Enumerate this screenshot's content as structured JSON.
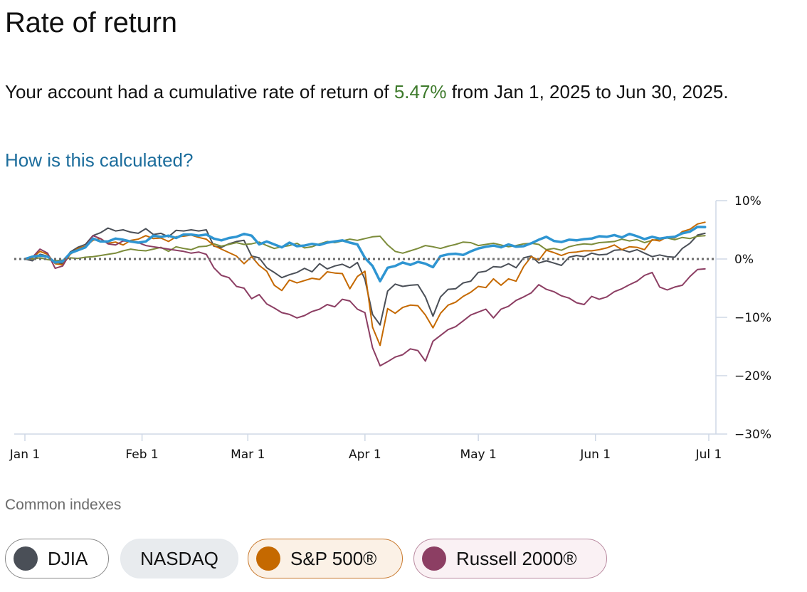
{
  "header": {
    "title": "Rate of return"
  },
  "summary": {
    "prefix": "Your account had a cumulative rate of return of ",
    "return_value": "5.47%",
    "suffix": " from Jan 1, 2025 to Jun 30, 2025.",
    "link_label": "How is this calculated?"
  },
  "colors": {
    "account": "#2e95d2",
    "djia": "#4a4f57",
    "nasdaq": "#7c8c3b",
    "sp500": "#c56900",
    "russell": "#8c3e63",
    "return_positive": "#3d7a2b",
    "link": "#1c6d9c"
  },
  "indexes": {
    "label": "Common indexes",
    "chips": [
      {
        "id": "djia",
        "label": "DJIA",
        "selected": true
      },
      {
        "id": "nasdaq",
        "label": "NASDAQ",
        "selected": false
      },
      {
        "id": "sp500",
        "label": "S&P 500®",
        "selected": true
      },
      {
        "id": "russell",
        "label": "Russell 2000®",
        "selected": true
      }
    ]
  },
  "chart_data": {
    "type": "line",
    "title": "Rate of return",
    "xlabel": "",
    "ylabel": "",
    "x_domain_days": [
      0,
      181
    ],
    "ylim": [
      -30,
      10
    ],
    "y_ticks": [
      {
        "value": 10,
        "label": "10%"
      },
      {
        "value": 0,
        "label": "0%"
      },
      {
        "value": -10,
        "label": "−10%"
      },
      {
        "value": -20,
        "label": "−20%"
      },
      {
        "value": -30,
        "label": "−30%"
      }
    ],
    "x_ticks": [
      {
        "day": 0,
        "label": "Jan 1"
      },
      {
        "day": 31,
        "label": "Feb 1"
      },
      {
        "day": 59,
        "label": "Mar 1"
      },
      {
        "day": 90,
        "label": "Apr 1"
      },
      {
        "day": 120,
        "label": "May 1"
      },
      {
        "day": 151,
        "label": "Jun 1"
      },
      {
        "day": 181,
        "label": "Jul 1"
      }
    ],
    "zero_line": "dotted",
    "x_days": [
      0,
      2,
      4,
      6,
      8,
      10,
      12,
      14,
      16,
      18,
      20,
      22,
      24,
      26,
      28,
      30,
      32,
      34,
      36,
      38,
      40,
      42,
      44,
      46,
      48,
      50,
      52,
      54,
      56,
      58,
      60,
      62,
      64,
      66,
      68,
      70,
      72,
      74,
      76,
      78,
      80,
      82,
      84,
      86,
      88,
      90,
      92,
      94,
      96,
      98,
      100,
      102,
      104,
      106,
      108,
      110,
      112,
      114,
      116,
      118,
      120,
      122,
      124,
      126,
      128,
      130,
      132,
      134,
      136,
      138,
      140,
      142,
      144,
      146,
      148,
      150,
      152,
      154,
      156,
      158,
      160,
      162,
      164,
      166,
      168,
      170,
      172,
      174,
      176,
      178,
      180
    ],
    "series": [
      {
        "name": "Account",
        "color_key": "account",
        "width": 3.5,
        "values": [
          0,
          0.4,
          0.6,
          0.4,
          -0.6,
          -0.4,
          1,
          1.5,
          2,
          3.5,
          3,
          3,
          3.5,
          3.3,
          3,
          2.8,
          3,
          4,
          3.8,
          4,
          3.6,
          4.2,
          4.2,
          4,
          4.2,
          3.5,
          3.2,
          3.6,
          3.8,
          4.3,
          4,
          2.5,
          3,
          2.5,
          2,
          2.8,
          2.2,
          2.3,
          2.6,
          2.4,
          2.8,
          3,
          3.2,
          2.8,
          2.5,
          0.2,
          -1.2,
          -3.8,
          -1.5,
          -1.2,
          -0.6,
          -1,
          -0.5,
          -0.8,
          -1.4,
          0.5,
          0.8,
          0.9,
          0.7,
          1.3,
          1.8,
          2.1,
          2.3,
          2,
          2.5,
          2.1,
          2.2,
          2.7,
          3.3,
          3.8,
          3.1,
          2.9,
          3.3,
          3.2,
          3.4,
          3.5,
          3.9,
          3.8,
          4.1,
          3.7,
          4.3,
          3.9,
          3.4,
          3.8,
          3.5,
          3.7,
          3.8,
          4.4,
          4.7,
          5.5,
          5.47
        ]
      },
      {
        "name": "DJIA",
        "color_key": "djia",
        "width": 2,
        "values": [
          0,
          -0.3,
          0.8,
          0.5,
          -0.5,
          -0.8,
          1.2,
          2,
          2.5,
          4,
          4.5,
          5.3,
          4.8,
          5,
          4.6,
          4.4,
          5.2,
          4.2,
          4.4,
          3.8,
          4.9,
          4.8,
          5,
          4.8,
          5,
          2.2,
          2,
          2.6,
          3,
          3.2,
          0.5,
          0.2,
          -1.5,
          -2.3,
          -3.2,
          -2.7,
          -2.3,
          -1.6,
          -2.2,
          -0.8,
          -1.7,
          -1.2,
          -0.9,
          -1.5,
          -0.6,
          -3.5,
          -9.5,
          -11.3,
          -5.5,
          -4.3,
          -4.7,
          -4.5,
          -4.4,
          -6.5,
          -9.8,
          -6.5,
          -5.2,
          -5.1,
          -4.1,
          -3.8,
          -2.3,
          -2.1,
          -1.3,
          -1.4,
          -0.8,
          -1.5,
          0.2,
          0.5,
          -0.7,
          -0.3,
          -0.7,
          -1.1,
          0.3,
          0.6,
          0.4,
          1,
          0.7,
          0.8,
          1.5,
          1.6,
          1.2,
          1.6,
          1,
          0.4,
          0.7,
          0.4,
          0.3,
          1.8,
          2.7,
          4.1,
          4.4
        ]
      },
      {
        "name": "NASDAQ",
        "color_key": "nasdaq",
        "width": 2,
        "values": [
          0,
          0,
          0.2,
          -0.1,
          -0.3,
          -0.2,
          0.2,
          0.1,
          0.3,
          0.4,
          0.6,
          0.8,
          1,
          1.4,
          1.7,
          1.5,
          1.4,
          1.7,
          2,
          1.3,
          2.1,
          1.8,
          1.6,
          2.1,
          2.2,
          2.6,
          2.2,
          2.5,
          2.8,
          2.5,
          2.6,
          2.9,
          2.3,
          1.8,
          2.1,
          2.3,
          2.7,
          1.9,
          2.1,
          2.6,
          3,
          2.8,
          3.1,
          3.4,
          3.2,
          3.5,
          3.8,
          3.9,
          2.4,
          1.3,
          1,
          1.4,
          1.8,
          2.3,
          2.1,
          1.8,
          2.2,
          2.5,
          2.9,
          2.8,
          2.3,
          2.5,
          2.7,
          2.4,
          2.1,
          2.3,
          2.6,
          2.7,
          2.5,
          1.6,
          1.8,
          1.5,
          2.1,
          2.4,
          2.6,
          2.5,
          2.8,
          2.9,
          3,
          3.4,
          3.1,
          3.3,
          2.8,
          3.2,
          3.4,
          3.6,
          3.3,
          3.7,
          3.5,
          3.9,
          4
        ]
      },
      {
        "name": "S&P 500®",
        "color_key": "sp500",
        "width": 2,
        "values": [
          0,
          0.2,
          1.3,
          0.8,
          -0.8,
          -1,
          0.8,
          1.8,
          2.2,
          3.2,
          3.5,
          2.7,
          2.9,
          2.4,
          3.2,
          3.4,
          4,
          3.5,
          3.6,
          3,
          3.8,
          3.9,
          4.1,
          3.7,
          3.4,
          2.3,
          1.7,
          1.1,
          0.5,
          -0.8,
          0.4,
          -1.1,
          -2.1,
          -4.5,
          -5.4,
          -3.6,
          -4.1,
          -3.7,
          -3.3,
          -3.5,
          -2.2,
          -2.4,
          -2.5,
          -5.1,
          -3,
          -2.1,
          -11.7,
          -14.8,
          -8.5,
          -9.3,
          -8.3,
          -7.9,
          -8,
          -9.6,
          -11.8,
          -9.3,
          -7.9,
          -7.4,
          -6.4,
          -5.7,
          -4.7,
          -4.9,
          -3.4,
          -4.5,
          -3.4,
          -3.8,
          -1.3,
          0.4,
          -0.2,
          1.5,
          1.1,
          0.6,
          1.1,
          1.2,
          1.4,
          1.4,
          1.6,
          1.9,
          2.4,
          1.6,
          2.1,
          2,
          1.6,
          3.3,
          3.1,
          3.8,
          3.6,
          4.7,
          5.1,
          6,
          6.3
        ]
      },
      {
        "name": "Russell 2000®",
        "color_key": "russell",
        "width": 2,
        "values": [
          0,
          0.3,
          1.7,
          1,
          -1.6,
          -1.2,
          1,
          1.5,
          2.1,
          4,
          3.5,
          2.6,
          2.4,
          3.1,
          3,
          2.8,
          2.3,
          2.1,
          1.9,
          1.7,
          1.5,
          1.3,
          1,
          1.2,
          0.8,
          -1.5,
          -2.8,
          -3.2,
          -4.7,
          -5,
          -6.8,
          -6.1,
          -7.7,
          -8.4,
          -9.2,
          -9.5,
          -10.1,
          -9.7,
          -9,
          -8.6,
          -7.8,
          -8.2,
          -6.9,
          -7.2,
          -8.6,
          -9.2,
          -15.2,
          -18.3,
          -17.6,
          -16.8,
          -16.4,
          -15.4,
          -15.7,
          -17.5,
          -14.1,
          -13.1,
          -12.1,
          -11.6,
          -10.6,
          -9.6,
          -9.1,
          -8.6,
          -10.1,
          -8.6,
          -8.1,
          -7.1,
          -6.5,
          -5.8,
          -4.4,
          -5.2,
          -5.6,
          -6.3,
          -6.7,
          -7.5,
          -7.8,
          -6.4,
          -6.9,
          -6.5,
          -5.6,
          -5.1,
          -4.4,
          -3.8,
          -2.8,
          -2.3,
          -4.8,
          -5.3,
          -4.8,
          -4.5,
          -3,
          -1.8,
          -1.7
        ]
      }
    ]
  }
}
